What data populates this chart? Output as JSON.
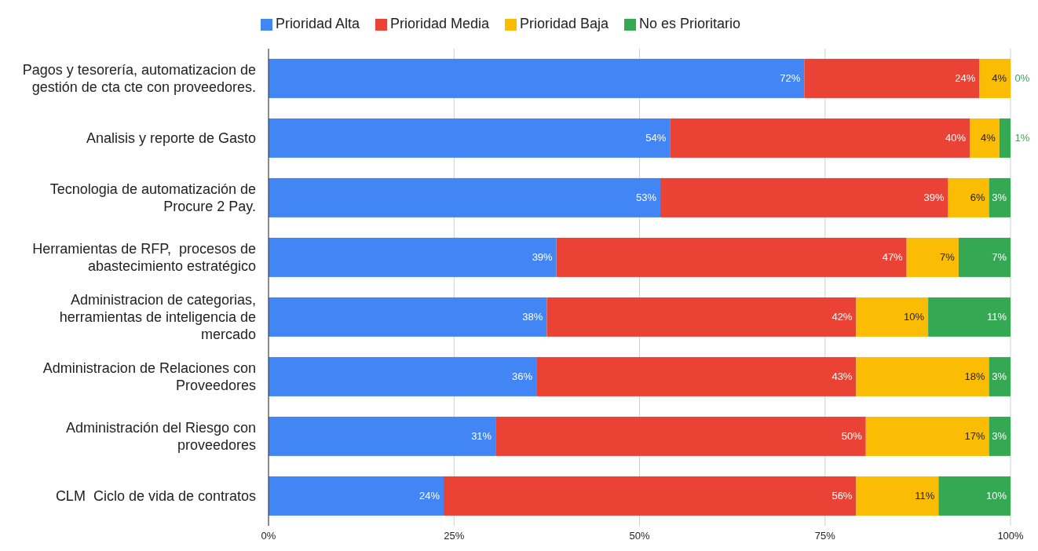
{
  "chart_data": {
    "type": "bar",
    "orientation": "horizontal",
    "stacked": true,
    "categories": [
      "Pagos y tesorería, automatizacion de gestión de cta cte con proveedores.",
      "Analisis y reporte de Gasto",
      "Tecnologia de automatización de Procure 2 Pay.",
      "Herramientas de RFP,  procesos de abastecimiento estratégico",
      "Administracion de categorias, herramientas de inteligencia de mercado",
      "Administracion de Relaciones con Proveedores",
      "Administración del Riesgo con proveedores",
      "CLM  Ciclo de vida de contratos"
    ],
    "series": [
      {
        "name": "Prioridad Alta",
        "color": "#4285f4",
        "values": [
          72.2,
          54.1,
          52.8,
          38.8,
          37.5,
          36.1,
          30.6,
          23.6
        ],
        "value_labels": [
          "72%",
          "54%",
          "53%",
          "39%",
          "38%",
          "36%",
          "31%",
          "24%"
        ]
      },
      {
        "name": "Prioridad Media",
        "color": "#ea4335",
        "values": [
          23.6,
          40.4,
          38.8,
          47.2,
          41.7,
          43.1,
          49.9,
          55.6
        ],
        "value_labels": [
          "24%",
          "40%",
          "39%",
          "47%",
          "42%",
          "43%",
          "50%",
          "56%"
        ]
      },
      {
        "name": "Prioridad Baja",
        "color": "#fbbc04",
        "values": [
          4.2,
          4.0,
          5.5,
          7.0,
          9.7,
          17.9,
          16.6,
          11.1
        ],
        "value_labels": [
          "4%",
          "4%",
          "6%",
          "7%",
          "10%",
          "18%",
          "17%",
          "11%"
        ]
      },
      {
        "name": "No es Prioritario",
        "color": "#34a853",
        "values": [
          0,
          1.5,
          2.9,
          7.0,
          11.1,
          2.9,
          2.9,
          9.7
        ],
        "value_labels": [
          "0%",
          "1%",
          "3%",
          "7%",
          "11%",
          "3%",
          "3%",
          "10%"
        ]
      }
    ],
    "xlim": [
      0,
      100
    ],
    "xticks": [
      {
        "value": 0,
        "label": "0%"
      },
      {
        "value": 25,
        "label": "25%"
      },
      {
        "value": 50,
        "label": "50%"
      },
      {
        "value": 75,
        "label": "75%"
      },
      {
        "value": 100,
        "label": "100%"
      }
    ],
    "grid": "x",
    "legend": "top"
  }
}
